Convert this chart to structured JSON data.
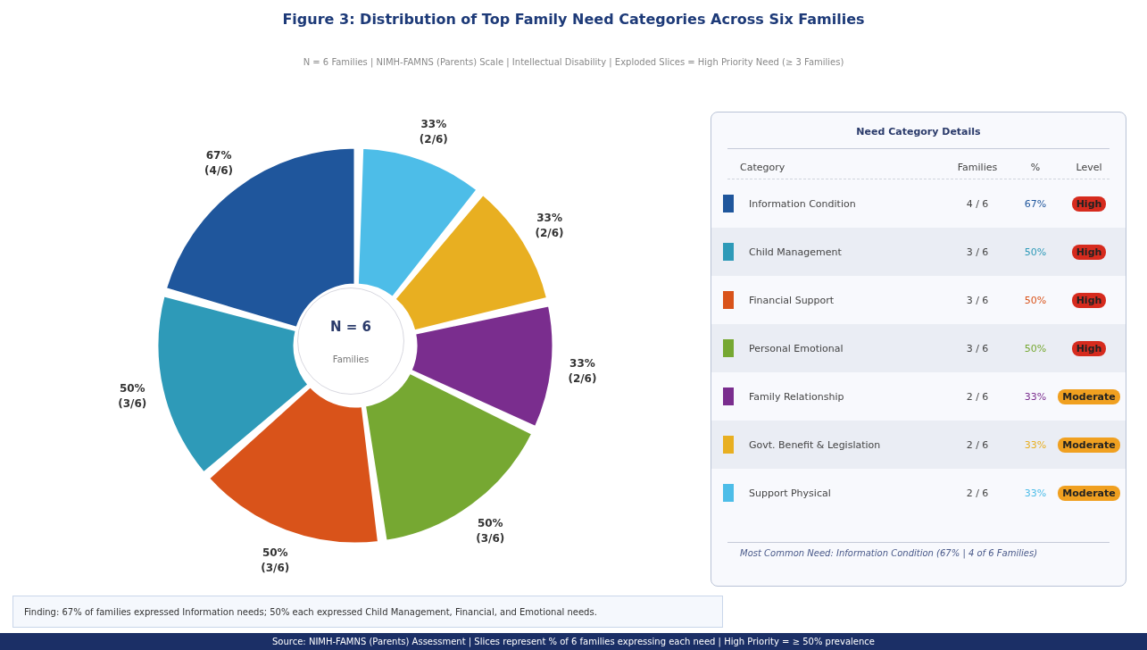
{
  "chart_data": {
    "type": "donut",
    "title": "Figure 3: Distribution of Top Family Need Categories Across Six Families",
    "subtitle": "N = 6 Families  |  NIMH-FAMNS (Parents) Scale  |  Intellectual Disability  |  Exploded Slices = High Priority Need (≥ 3 Families)",
    "categories": [
      "Information Condition",
      "Child Management",
      "Financial Support",
      "Personal Emotional",
      "Family Relationship",
      "Govt. Benefit & Legislation",
      "Support Physical"
    ],
    "values": [
      67,
      50,
      50,
      50,
      33,
      33,
      33
    ],
    "colors": [
      "#1f569c",
      "#2e9ab8",
      "#d9531a",
      "#76a832",
      "#7a2d8e",
      "#e8af21",
      "#4dbde8"
    ],
    "value_labels": [
      "67% (4/6)",
      "50% (3/6)",
      "50% (3/6)",
      "50% (3/6)",
      "33% (2/6)",
      "33% (2/6)",
      "33% (2/6)"
    ],
    "legend": "right",
    "legend_title": "Need Category Details",
    "annotations": [
      "N = 6",
      "Families",
      "Finding: 67% of families expressed Information needs; 50% each expressed Child Management, Financial, and Emotional needs.",
      "Source: NIMH-FAMNS (Parents) Assessment  |  Slices represent % of 6 families expressing each need  |  High Priority = ≥ 50% prevalence",
      "Category",
      "Families",
      "%",
      "Level",
      "4 / 6",
      "67%",
      "High",
      "3 / 6",
      "50%",
      "High",
      "3 / 6",
      "50%",
      "High",
      "3 / 6",
      "50%",
      "High",
      "2 / 6",
      "33%",
      "Moderate",
      "2 / 6",
      "33%",
      "Moderate",
      "2 / 6",
      "33%",
      "Moderate",
      "Most Common Need: Information Condition (67% | 4 of 6 Families)"
    ]
  }
}
